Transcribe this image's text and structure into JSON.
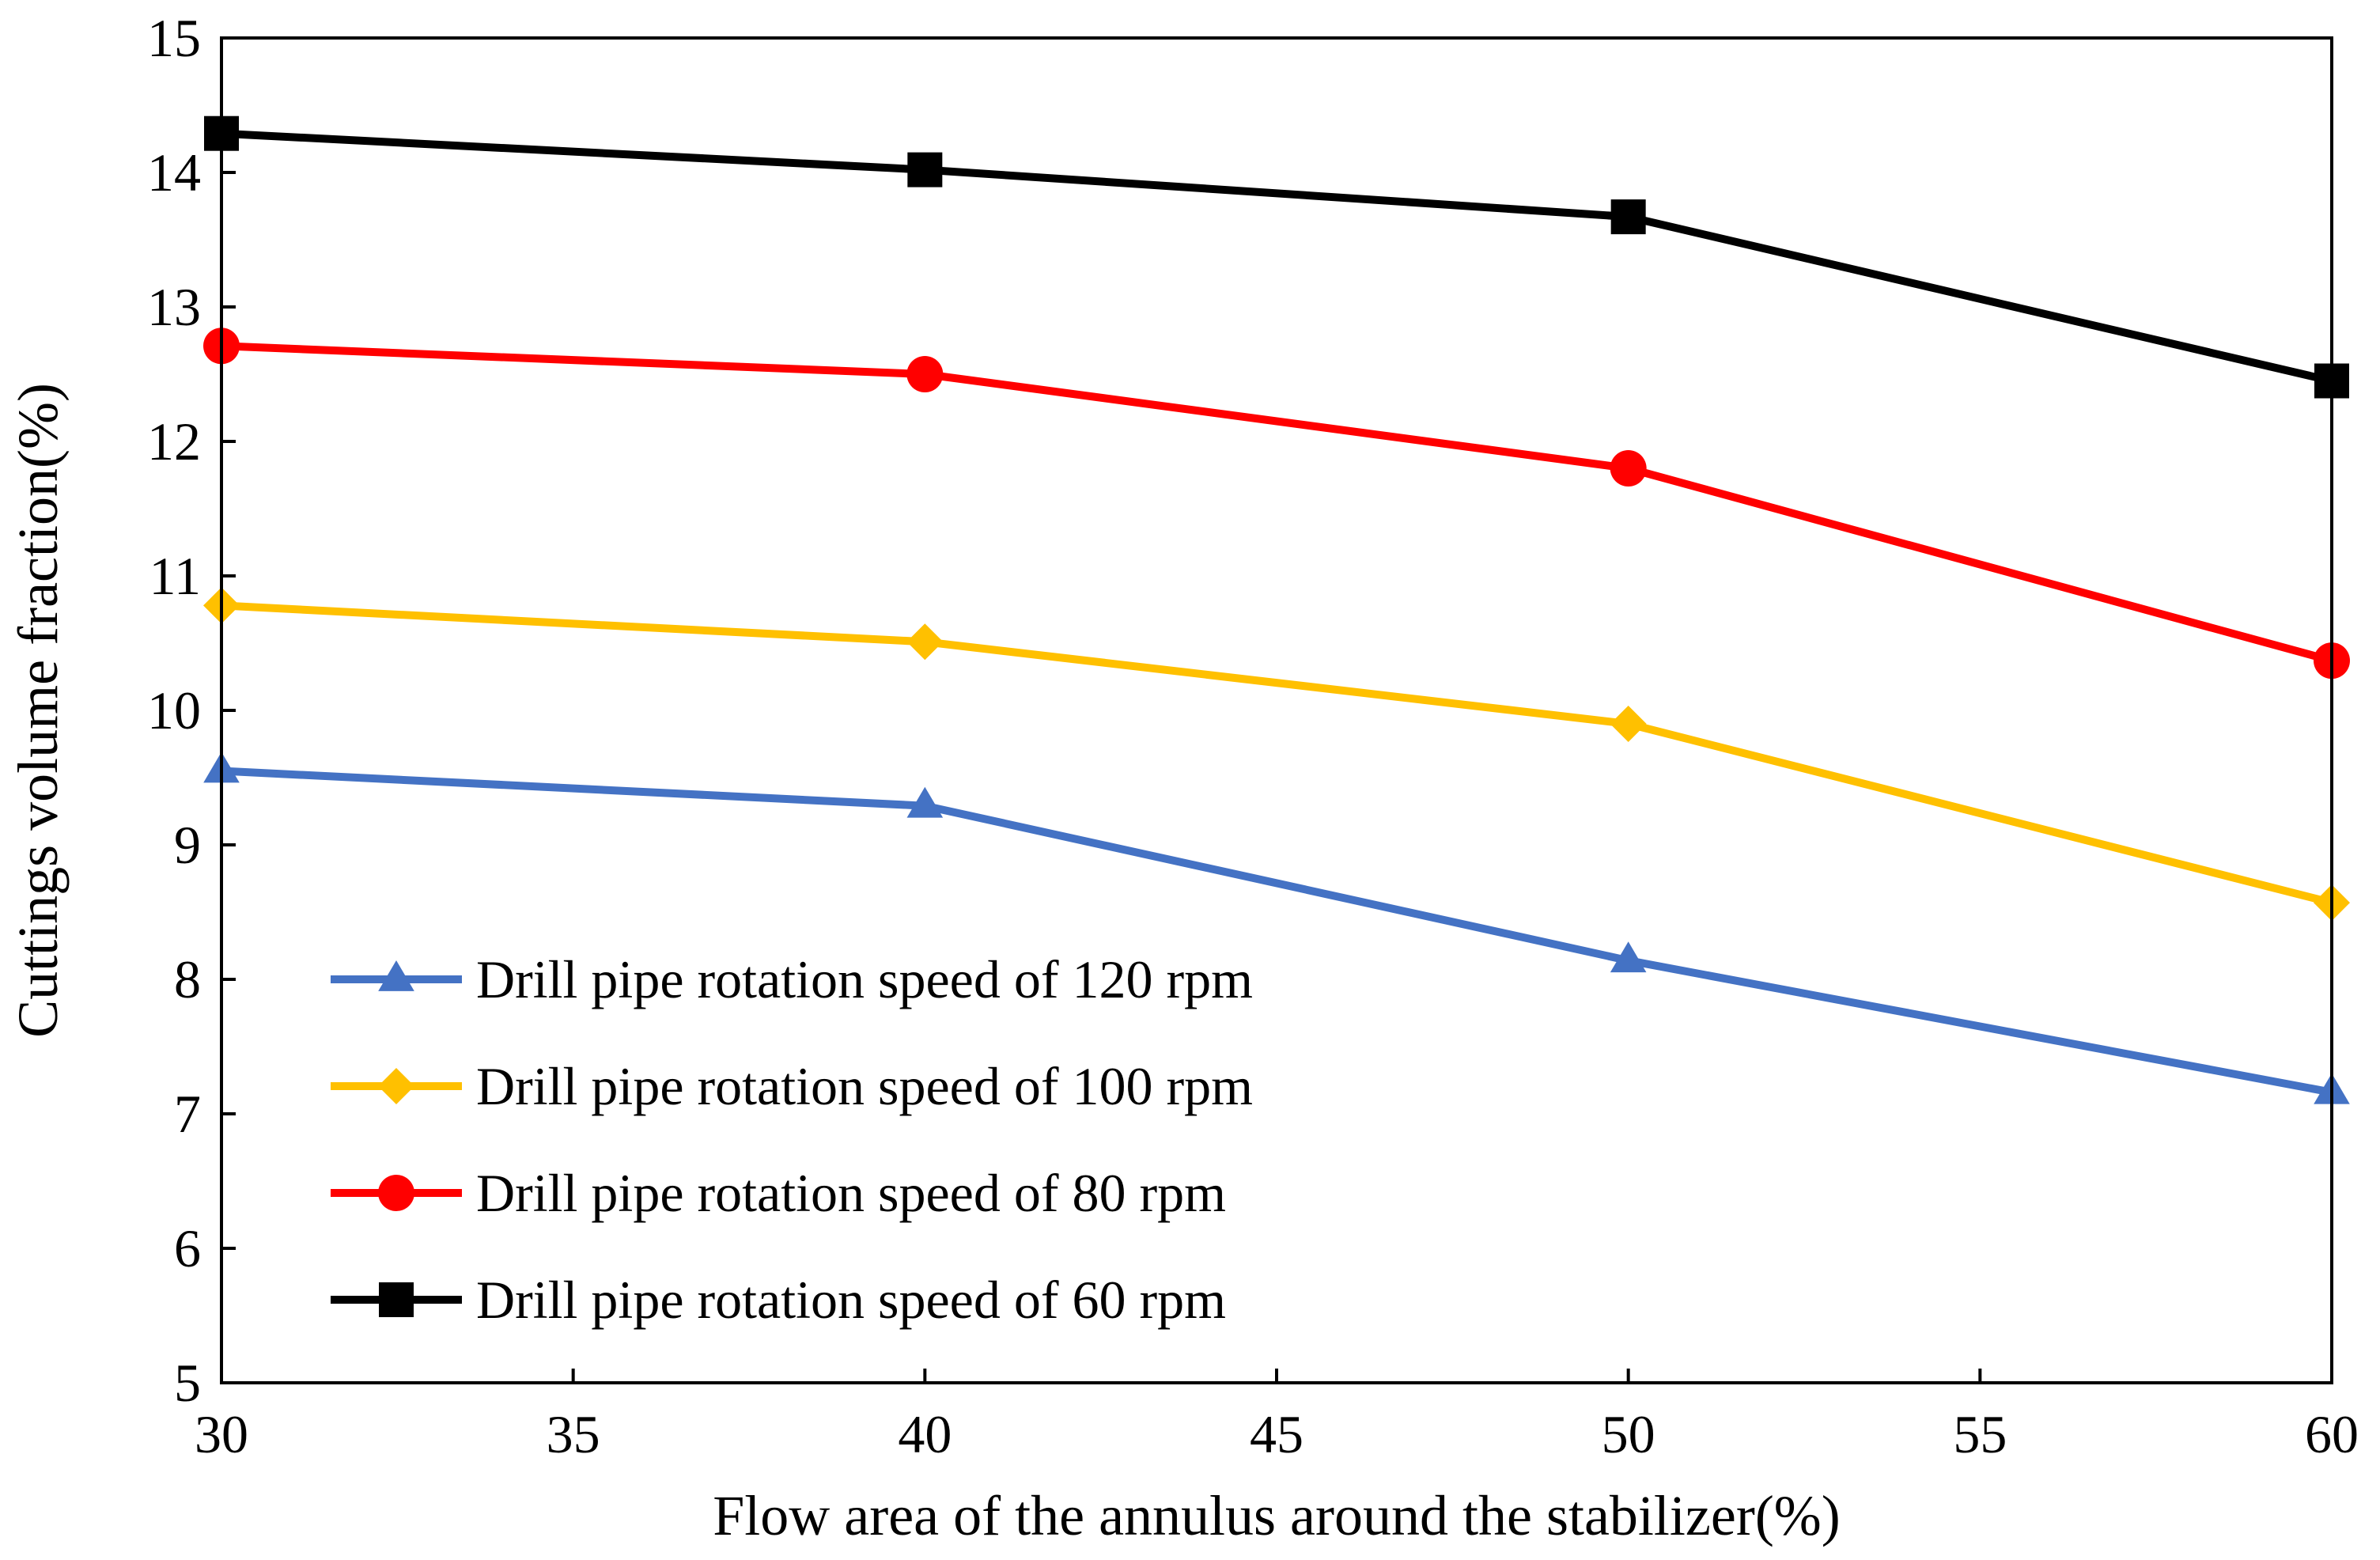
{
  "chart_data": {
    "type": "line",
    "title": "",
    "xlabel": "Flow area of the annulus around the stabilizer(%)",
    "ylabel": "Cuttings volume fraction(%)",
    "xlim": [
      30,
      60
    ],
    "ylim": [
      5,
      15
    ],
    "x_ticks": [
      30,
      35,
      40,
      45,
      50,
      55,
      60
    ],
    "y_ticks": [
      5,
      6,
      7,
      8,
      9,
      10,
      11,
      12,
      13,
      14,
      15
    ],
    "grid": false,
    "legend_position": "bottom-left",
    "series": [
      {
        "name": "Drill pipe rotation speed of 120 rpm",
        "color": "#4472c4",
        "marker": "triangle",
        "points": [
          {
            "x": 30,
            "y": 9.55
          },
          {
            "x": 40,
            "y": 9.29
          },
          {
            "x": 50,
            "y": 8.14
          },
          {
            "x": 60,
            "y": 7.16
          }
        ]
      },
      {
        "name": "Drill pipe rotation speed of 100 rpm",
        "color": "#ffc000",
        "marker": "diamond",
        "points": [
          {
            "x": 30,
            "y": 10.78
          },
          {
            "x": 40,
            "y": 10.51
          },
          {
            "x": 50,
            "y": 9.9
          },
          {
            "x": 60,
            "y": 8.57
          }
        ]
      },
      {
        "name": "Drill pipe rotation speed of 80 rpm",
        "color": "#ff0000",
        "marker": "circle",
        "points": [
          {
            "x": 30,
            "y": 12.71
          },
          {
            "x": 40,
            "y": 12.5
          },
          {
            "x": 50,
            "y": 11.8
          },
          {
            "x": 60,
            "y": 10.37
          }
        ]
      },
      {
        "name": "Drill pipe rotation speed of 60 rpm",
        "color": "#000000",
        "marker": "square",
        "points": [
          {
            "x": 30,
            "y": 14.29
          },
          {
            "x": 40,
            "y": 14.02
          },
          {
            "x": 50,
            "y": 13.67
          },
          {
            "x": 60,
            "y": 12.45
          }
        ]
      }
    ]
  }
}
